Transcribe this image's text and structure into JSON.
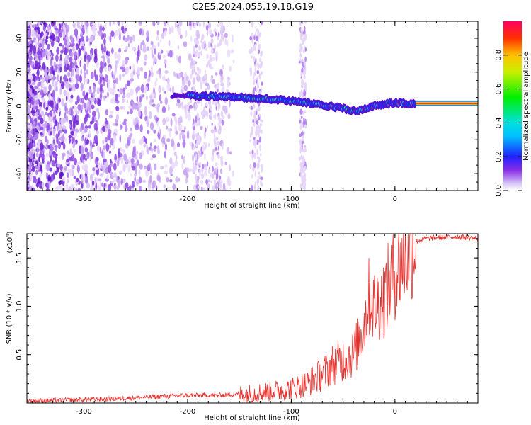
{
  "title": "C2E5.2024.055.19.18.G19",
  "chart_data": [
    {
      "type": "heatmap",
      "xlabel": "Height of straight line (km)",
      "ylabel": "Frequency (Hz)",
      "xlim": [
        -355,
        80
      ],
      "ylim": [
        -50,
        50
      ],
      "x_ticks": [
        "-300",
        "-200",
        "-100",
        "0"
      ],
      "y_ticks": [
        "-40",
        "-20",
        "0",
        "20",
        "40"
      ],
      "colorbar": {
        "label": "Normalized spectral amplitude",
        "range": [
          0,
          1
        ],
        "ticks": [
          "0.0",
          "0.2",
          "0.4",
          "0.6",
          "0.8"
        ]
      },
      "signal_track": {
        "x": [
          -210,
          -190,
          -170,
          -150,
          -130,
          -110,
          -95,
          -80,
          -65,
          -50,
          -40,
          -30,
          -20,
          -10,
          0,
          10,
          20,
          40,
          60,
          80
        ],
        "frequency": [
          6,
          6,
          5.5,
          5,
          4.5,
          3.5,
          2.5,
          1.5,
          0,
          -1.5,
          -3,
          -2,
          0,
          1,
          2,
          1.5,
          1.5,
          1.5,
          1.5,
          1.5
        ]
      }
    },
    {
      "type": "line",
      "xlabel": "Height of straight line (km)",
      "ylabel": "SNR (10 * v/v)",
      "y_multiplier": "(x10",
      "y_multiplier_exp": "4",
      "y_multiplier_close": ")",
      "xlim": [
        -355,
        80
      ],
      "ylim": [
        0,
        1.75
      ],
      "x_ticks": [
        "-300",
        "-200",
        "-100",
        "0"
      ],
      "y_ticks": [
        "0.5",
        "1.0",
        "1.5"
      ],
      "series": [
        {
          "color": "#e8302c",
          "x": [
            -355,
            -320,
            -280,
            -240,
            -200,
            -170,
            -140,
            -120,
            -100,
            -85,
            -70,
            -60,
            -50,
            -40,
            -30,
            -25,
            -20,
            -15,
            -10,
            -5,
            0,
            5,
            10,
            20,
            30,
            40,
            60,
            80
          ],
          "y": [
            0.02,
            0.03,
            0.04,
            0.06,
            0.08,
            0.08,
            0.1,
            0.12,
            0.15,
            0.2,
            0.3,
            0.4,
            0.45,
            0.5,
            0.8,
            1.1,
            1.0,
            1.05,
            1.1,
            1.25,
            1.35,
            1.45,
            1.55,
            1.67,
            1.7,
            1.71,
            1.72,
            1.7
          ]
        }
      ]
    }
  ]
}
